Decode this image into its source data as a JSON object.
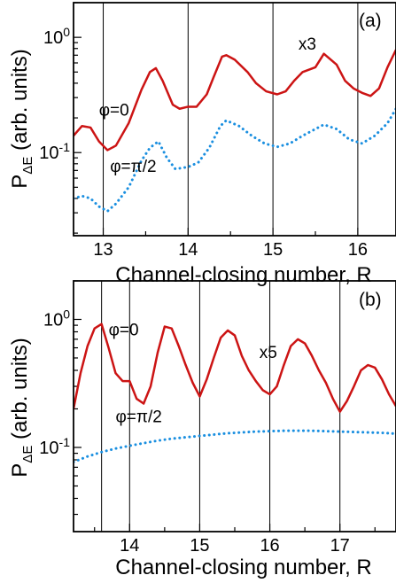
{
  "chart_data": [
    {
      "panel": "(a)",
      "type": "line",
      "xlabel": "Channel-closing number, R",
      "ylabel_main": "P",
      "ylabel_sub": "ΔE",
      "ylabel_rest": " (arb. units)",
      "xlim": [
        12.65,
        16.45
      ],
      "ylim": [
        0.019,
        2.0
      ],
      "yscale": "log",
      "x_ticks": [
        "13",
        "14",
        "15",
        "16"
      ],
      "x_tick_values": [
        13,
        14,
        15,
        16
      ],
      "y_ticks": [
        {
          "value": 1.0,
          "base": "10",
          "exp": "0"
        },
        {
          "value": 0.1,
          "base": "10",
          "exp": "-1"
        }
      ],
      "vlines": [
        13,
        14,
        15,
        16
      ],
      "annotations": [
        {
          "text": "φ=0",
          "x": 12.95,
          "y": 0.21
        },
        {
          "text": "φ=π/2",
          "x": 13.08,
          "y": 0.068
        },
        {
          "text": "x3",
          "x": 15.3,
          "y": 0.78
        }
      ],
      "series": [
        {
          "name": "φ=0",
          "color": "#cc1414",
          "style": "solid",
          "x": [
            12.65,
            12.75,
            12.85,
            12.95,
            13.05,
            13.15,
            13.3,
            13.45,
            13.55,
            13.62,
            13.7,
            13.82,
            13.9,
            14.0,
            14.1,
            14.22,
            14.3,
            14.4,
            14.45,
            14.55,
            14.7,
            14.8,
            14.92,
            15.05,
            15.15,
            15.25,
            15.35,
            15.5,
            15.6,
            15.75,
            15.85,
            15.95,
            16.05,
            16.15,
            16.25,
            16.35,
            16.45
          ],
          "y": [
            0.14,
            0.17,
            0.165,
            0.125,
            0.105,
            0.115,
            0.18,
            0.35,
            0.5,
            0.54,
            0.42,
            0.26,
            0.24,
            0.25,
            0.25,
            0.32,
            0.45,
            0.68,
            0.7,
            0.64,
            0.5,
            0.4,
            0.34,
            0.32,
            0.34,
            0.42,
            0.5,
            0.55,
            0.72,
            0.58,
            0.42,
            0.36,
            0.33,
            0.31,
            0.36,
            0.55,
            0.78
          ]
        },
        {
          "name": "φ=π/2",
          "color": "#1a8fe0",
          "style": "dotted",
          "x": [
            12.65,
            12.75,
            12.85,
            12.95,
            13.05,
            13.15,
            13.3,
            13.45,
            13.55,
            13.65,
            13.75,
            13.85,
            14.0,
            14.12,
            14.25,
            14.38,
            14.45,
            14.6,
            14.75,
            14.9,
            15.05,
            15.2,
            15.35,
            15.5,
            15.6,
            15.75,
            15.9,
            16.05,
            16.2,
            16.35,
            16.45
          ],
          "y": [
            0.04,
            0.042,
            0.04,
            0.034,
            0.031,
            0.036,
            0.05,
            0.085,
            0.11,
            0.125,
            0.09,
            0.072,
            0.075,
            0.082,
            0.11,
            0.17,
            0.19,
            0.17,
            0.14,
            0.12,
            0.112,
            0.12,
            0.14,
            0.16,
            0.175,
            0.16,
            0.13,
            0.12,
            0.14,
            0.18,
            0.24
          ]
        }
      ]
    },
    {
      "panel": "(b)",
      "type": "line",
      "xlabel": "Channel-closing number, R",
      "ylabel_main": "P",
      "ylabel_sub": "ΔE",
      "ylabel_rest": " (arb. units)",
      "xlim": [
        13.2,
        17.8
      ],
      "ylim": [
        0.022,
        2.0
      ],
      "yscale": "log",
      "x_ticks": [
        "14",
        "15",
        "16",
        "17"
      ],
      "x_tick_values": [
        14,
        15,
        16,
        17
      ],
      "y_ticks": [
        {
          "value": 1.0,
          "base": "10",
          "exp": "0"
        },
        {
          "value": 0.1,
          "base": "10",
          "exp": "-1"
        }
      ],
      "vlines": [
        13.6,
        14.0,
        15.0,
        16.0,
        17.0
      ],
      "annotations": [
        {
          "text": "φ=0",
          "x": 13.7,
          "y": 0.75
        },
        {
          "text": "φ=π/2",
          "x": 13.8,
          "y": 0.158
        },
        {
          "text": "x5",
          "x": 15.85,
          "y": 0.5
        }
      ],
      "series": [
        {
          "name": "φ=0",
          "color": "#cc1414",
          "style": "solid",
          "x": [
            13.2,
            13.3,
            13.4,
            13.5,
            13.6,
            13.7,
            13.8,
            13.9,
            14.0,
            14.1,
            14.2,
            14.3,
            14.4,
            14.5,
            14.6,
            14.7,
            14.8,
            14.9,
            15.0,
            15.1,
            15.2,
            15.3,
            15.4,
            15.5,
            15.6,
            15.7,
            15.8,
            15.9,
            16.0,
            16.1,
            16.2,
            16.3,
            16.4,
            16.5,
            16.6,
            16.7,
            16.8,
            16.9,
            17.0,
            17.1,
            17.2,
            17.3,
            17.4,
            17.5,
            17.6,
            17.7,
            17.8
          ],
          "y": [
            0.2,
            0.38,
            0.62,
            0.85,
            0.92,
            0.6,
            0.38,
            0.33,
            0.33,
            0.24,
            0.22,
            0.3,
            0.55,
            0.88,
            0.85,
            0.62,
            0.44,
            0.32,
            0.25,
            0.34,
            0.5,
            0.72,
            0.82,
            0.75,
            0.52,
            0.4,
            0.33,
            0.28,
            0.26,
            0.3,
            0.44,
            0.62,
            0.7,
            0.65,
            0.52,
            0.4,
            0.32,
            0.24,
            0.19,
            0.23,
            0.3,
            0.4,
            0.44,
            0.42,
            0.34,
            0.26,
            0.21
          ]
        },
        {
          "name": "φ=π/2",
          "color": "#1a8fe0",
          "style": "dotted",
          "x": [
            13.2,
            13.4,
            13.6,
            13.8,
            14.0,
            14.2,
            14.4,
            14.6,
            14.8,
            15.0,
            15.2,
            15.4,
            15.6,
            15.8,
            16.0,
            16.2,
            16.4,
            16.6,
            16.8,
            17.0,
            17.2,
            17.4,
            17.6,
            17.8
          ],
          "y": [
            0.077,
            0.085,
            0.092,
            0.098,
            0.103,
            0.108,
            0.113,
            0.117,
            0.12,
            0.123,
            0.126,
            0.129,
            0.131,
            0.133,
            0.134,
            0.135,
            0.135,
            0.135,
            0.134,
            0.133,
            0.132,
            0.131,
            0.13,
            0.128
          ]
        }
      ]
    }
  ]
}
